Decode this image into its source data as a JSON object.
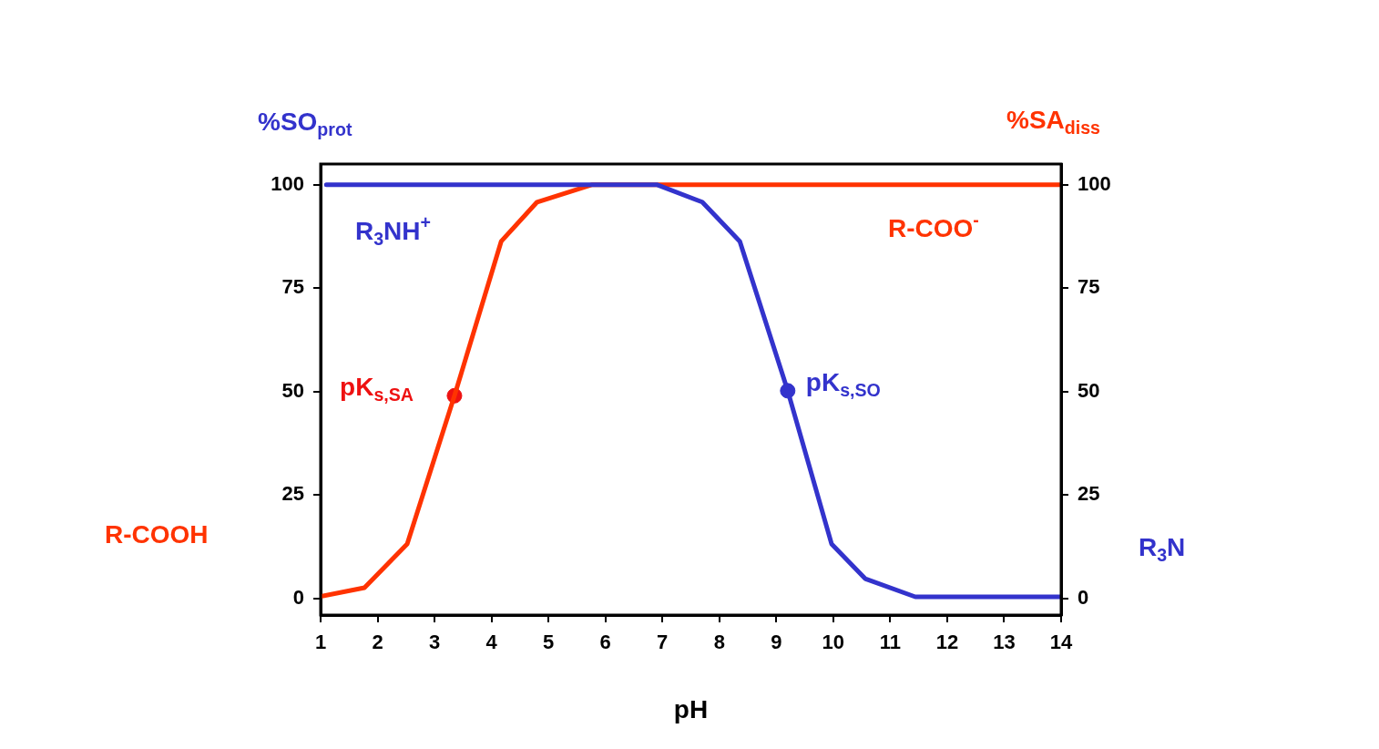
{
  "chart_data": {
    "type": "line",
    "xlabel": "pH",
    "ylabel": "%SO$_{prot}$",
    "y2label": "%SA$_{diss}$",
    "xlim": [
      1,
      14
    ],
    "xticks": [
      1,
      2,
      3,
      4,
      5,
      6,
      7,
      8,
      9,
      10,
      11,
      12,
      13,
      14
    ],
    "ylim": [
      -4,
      105
    ],
    "yticks": [
      0,
      25,
      50,
      75,
      100
    ],
    "y2lim": [
      -4,
      105
    ],
    "y2ticks": [
      0,
      25,
      50,
      75,
      100
    ],
    "grid": false,
    "legend": false,
    "marker": "none",
    "line_style": "solid",
    "series": [
      {
        "color": "#3333cc",
        "x": [
          1.1,
          6.9,
          7.7,
          8.36,
          9.2,
          9.97,
          10.56,
          11.44,
          14
        ],
        "values": [
          100,
          100,
          95.8,
          86.3,
          50.2,
          13.2,
          4.8,
          0.4,
          0.4
        ]
      },
      {
        "color": "#ff3300",
        "axis": "y2",
        "x": [
          1,
          1.77,
          2.52,
          3.35,
          4.17,
          4.8,
          5.77,
          14
        ],
        "values": [
          0.5,
          2.6,
          13.2,
          49,
          86.3,
          95.8,
          100,
          100
        ]
      },
      {
        "type": "scatter",
        "color": "#ee1111",
        "axis": "y2",
        "x": [
          3.35
        ],
        "values": [
          49
        ],
        "marker": "circle"
      },
      {
        "type": "scatter",
        "color": "#3333cc",
        "x": [
          9.2
        ],
        "values": [
          50.2
        ],
        "marker": "circle"
      }
    ],
    "annotations": [
      {
        "text": "pK$_{s,SA}$",
        "x": 3.35,
        "y": 49
      },
      {
        "text": "pK$_{s,SO}$",
        "x": 9.2,
        "y": 50.2
      },
      "R$_{3}$NH$^{+}$",
      "R-COO$^{-}$",
      "R-COOH",
      "R$_{3}$N"
    ]
  }
}
